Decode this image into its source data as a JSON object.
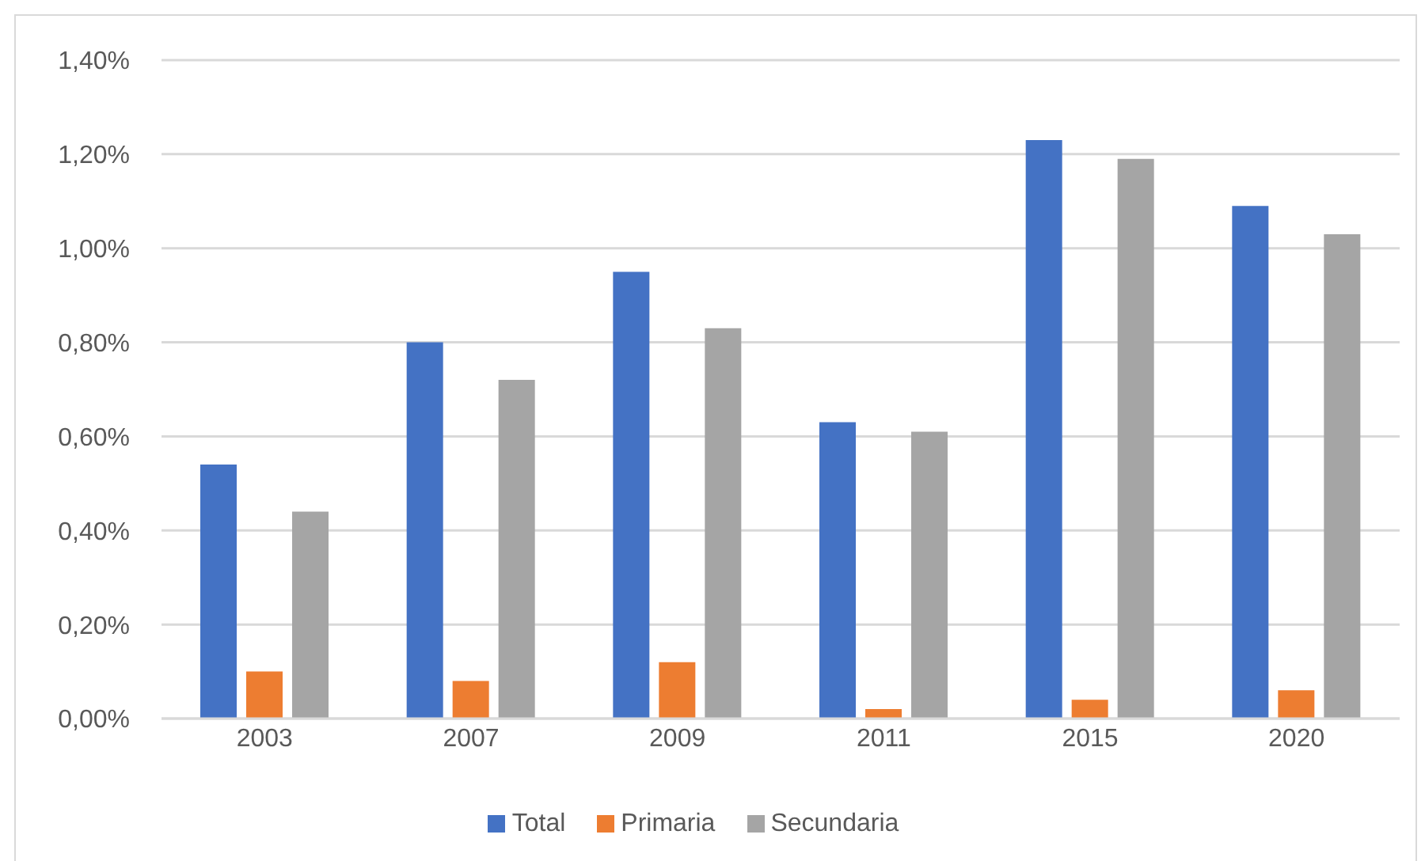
{
  "chart_data": {
    "type": "bar",
    "categories": [
      "2003",
      "2007",
      "2009",
      "2011",
      "2015",
      "2020"
    ],
    "series": [
      {
        "name": "Total",
        "color": "#4472c4",
        "values": [
          0.54,
          0.8,
          0.95,
          0.63,
          1.23,
          1.09
        ]
      },
      {
        "name": "Primaria",
        "color": "#ed7d31",
        "values": [
          0.1,
          0.08,
          0.12,
          0.02,
          0.04,
          0.06
        ]
      },
      {
        "name": "Secundaria",
        "color": "#a5a5a5",
        "values": [
          0.44,
          0.72,
          0.83,
          0.61,
          1.19,
          1.03
        ]
      }
    ],
    "ylim": [
      0,
      1.4
    ],
    "yticks": [
      {
        "value": 0,
        "label": "0,00%"
      },
      {
        "value": 0.2,
        "label": "0,20%"
      },
      {
        "value": 0.4,
        "label": "0,40%"
      },
      {
        "value": 0.6,
        "label": "0,60%"
      },
      {
        "value": 0.8,
        "label": "0,80%"
      },
      {
        "value": 1.0,
        "label": "1,00%"
      },
      {
        "value": 1.2,
        "label": "1,20%"
      },
      {
        "value": 1.4,
        "label": "1,40%"
      }
    ],
    "grid": "y",
    "legend": "bottom"
  }
}
